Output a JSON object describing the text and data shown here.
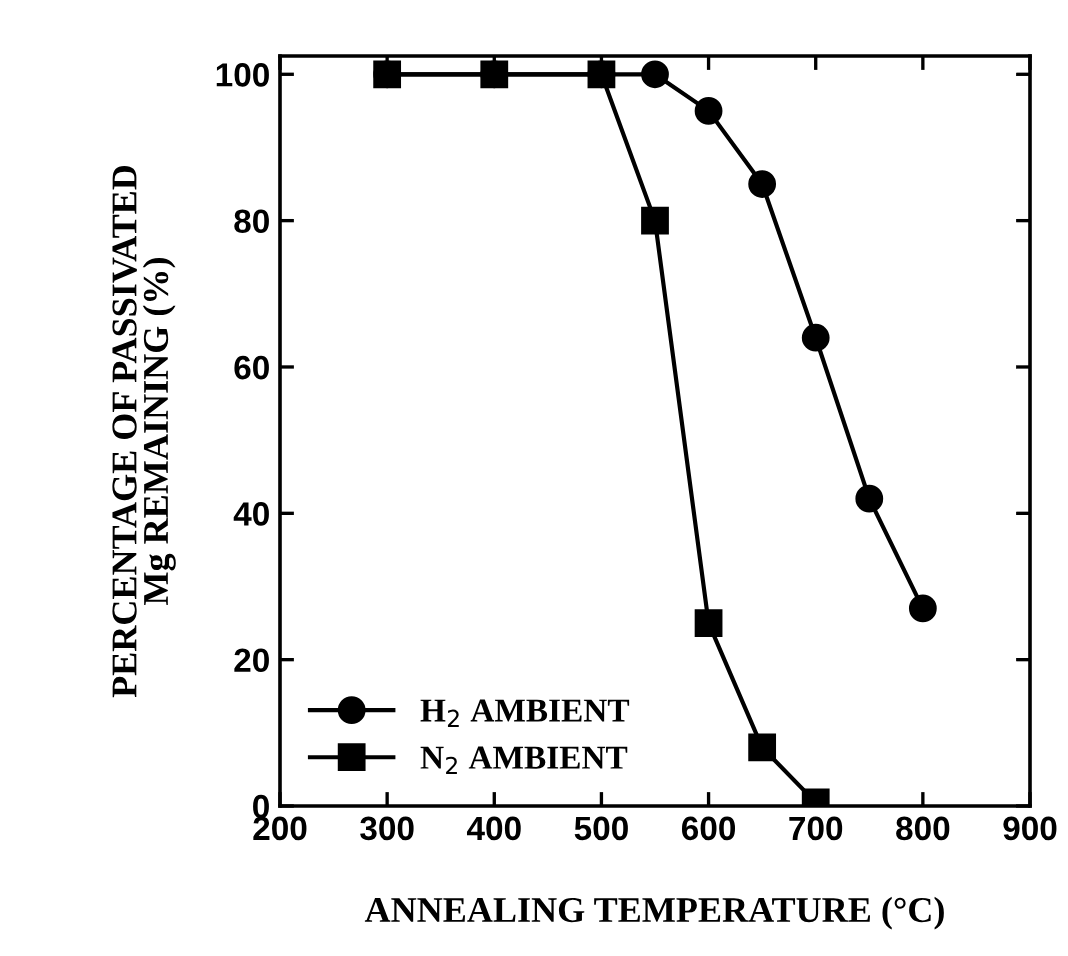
{
  "chart_data": {
    "type": "line",
    "xlabel": "ANNEALING TEMPERATURE (°C)",
    "ylabel": "PERCENTAGE OF PASSIVATED\nMg REMAINING (%)",
    "xlim": [
      200,
      900
    ],
    "xticks": [
      200,
      300,
      400,
      500,
      600,
      700,
      800,
      900
    ],
    "ylim": [
      0,
      102.5
    ],
    "yticks": [
      0,
      20,
      40,
      60,
      80,
      100
    ],
    "grid": false,
    "legend": "bottom left",
    "line_style": "solid",
    "series": [
      {
        "name": "H$_{2}$ AMBIENT",
        "color": "#000000",
        "marker": "circle",
        "x": [
          300,
          400,
          500,
          550,
          600,
          650,
          700,
          750,
          800
        ],
        "values": [
          100,
          100,
          100,
          100,
          95,
          85,
          64,
          42,
          27
        ]
      },
      {
        "name": "N$_{2}$ AMBIENT",
        "color": "#000000",
        "marker": "square",
        "x": [
          300,
          400,
          500,
          550,
          600,
          650,
          700
        ],
        "values": [
          100,
          100,
          100,
          80,
          25,
          8,
          0.5
        ]
      }
    ]
  }
}
